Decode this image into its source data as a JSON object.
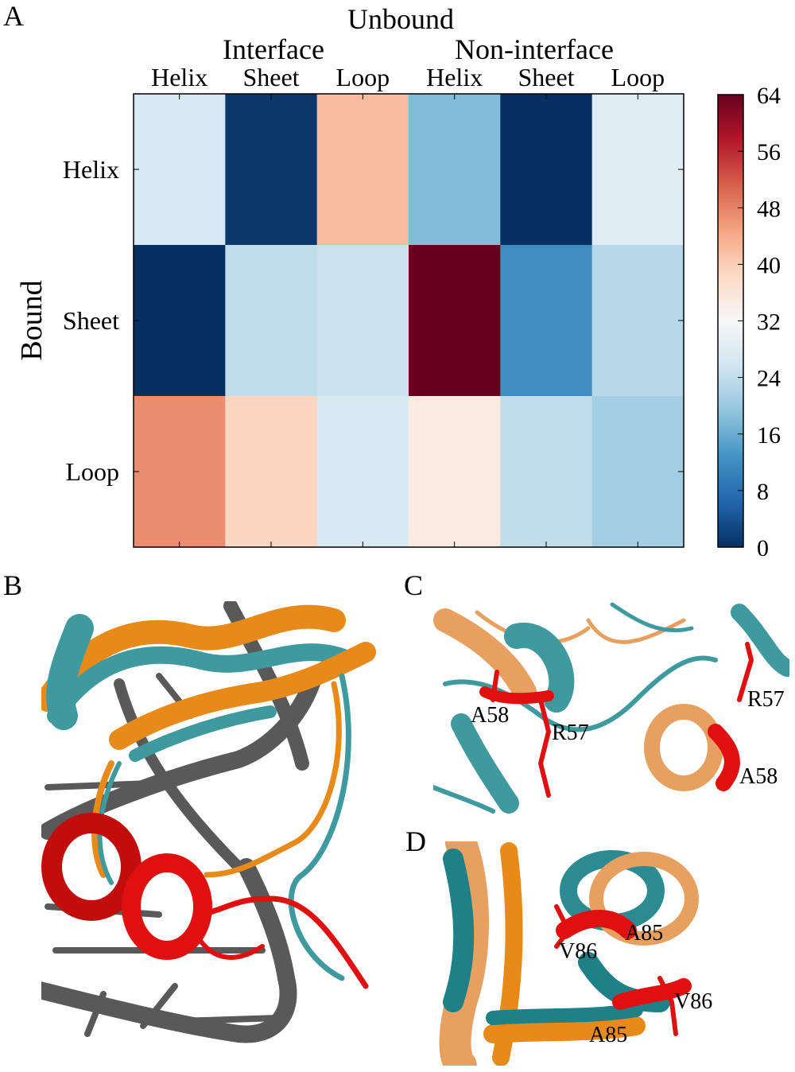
{
  "panels": {
    "a": "A",
    "b": "B",
    "c": "C",
    "d": "D"
  },
  "chart_data": {
    "type": "heatmap",
    "title": "Unbound",
    "xgroups": [
      "Interface",
      "Non-interface"
    ],
    "xcategories": [
      "Helix",
      "Sheet",
      "Loop",
      "Helix",
      "Sheet",
      "Loop"
    ],
    "ylabel": "Bound",
    "ycategories": [
      "Helix",
      "Sheet",
      "Loop"
    ],
    "values": [
      [
        27,
        1,
        42,
        18,
        0,
        28
      ],
      [
        0,
        24,
        25,
        64,
        12,
        23
      ],
      [
        47,
        39,
        27,
        35,
        24,
        21
      ]
    ],
    "colorbar": {
      "min": 0,
      "max": 64,
      "ticks": [
        "0",
        "8",
        "16",
        "24",
        "32",
        "40",
        "48",
        "56",
        "64"
      ],
      "colormap": [
        "#053061",
        "#2166ac",
        "#4393c3",
        "#92c5de",
        "#d1e5f0",
        "#f7f7f7",
        "#fddbc7",
        "#f4a582",
        "#d6604d",
        "#b2182b",
        "#67001f"
      ]
    }
  },
  "structures": {
    "c_labels": [
      "A58",
      "R57",
      "R57",
      "A58"
    ],
    "d_labels": [
      "V86",
      "A85",
      "V86",
      "A85"
    ],
    "colors": {
      "teal": "#3f9aa0",
      "orange": "#e88a1a",
      "red": "#e01010",
      "dna": "#595959"
    }
  }
}
